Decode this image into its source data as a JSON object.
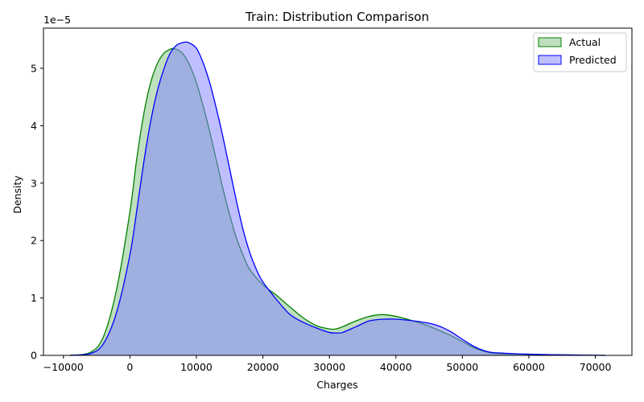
{
  "chart_data": {
    "type": "area",
    "title": "Train: Distribution Comparison",
    "xlabel": "Charges",
    "ylabel": "Density",
    "y_exponent_label": "1e−5",
    "xlim": [
      -13000,
      75500
    ],
    "ylim": [
      0,
      5.7
    ],
    "x_ticks": [
      -10000,
      0,
      10000,
      20000,
      30000,
      40000,
      50000,
      60000,
      70000
    ],
    "x_tick_labels": [
      "−10000",
      "0",
      "10000",
      "20000",
      "30000",
      "40000",
      "50000",
      "60000",
      "70000"
    ],
    "y_ticks": [
      0,
      1,
      2,
      3,
      4,
      5
    ],
    "y_tick_labels": [
      "0",
      "1",
      "2",
      "3",
      "4",
      "5"
    ],
    "legend_position": "top-right",
    "grid": false,
    "series": [
      {
        "name": "Actual",
        "line_color": "#008000",
        "fill_color": "#7fbf7f",
        "x": [
          -9000,
          -6000,
          -4000,
          -2000,
          0,
          1000,
          2000,
          3000,
          4000,
          5000,
          6000,
          6800,
          8000,
          9000,
          10000,
          11000,
          12000,
          13000,
          14000,
          15000,
          16000,
          17000,
          18000,
          20000,
          22000,
          24000,
          26000,
          28000,
          30000,
          31000,
          32000,
          34000,
          36000,
          38000,
          40000,
          42000,
          44000,
          46000,
          48000,
          50000,
          52000,
          54000,
          56000,
          60000,
          64000,
          68000,
          71500
        ],
        "y": [
          0.0,
          0.05,
          0.32,
          1.15,
          2.5,
          3.4,
          4.15,
          4.7,
          5.05,
          5.25,
          5.33,
          5.34,
          5.25,
          5.05,
          4.75,
          4.35,
          3.9,
          3.4,
          2.9,
          2.45,
          2.05,
          1.75,
          1.5,
          1.23,
          1.05,
          0.85,
          0.66,
          0.52,
          0.46,
          0.46,
          0.5,
          0.6,
          0.68,
          0.71,
          0.68,
          0.62,
          0.55,
          0.46,
          0.36,
          0.24,
          0.12,
          0.05,
          0.03,
          0.02,
          0.01,
          0.005,
          0.0
        ]
      },
      {
        "name": "Predicted",
        "line_color": "#0000ff",
        "fill_color": "#7f7fff",
        "x": [
          -9000,
          -6000,
          -4000,
          -2000,
          0,
          1000,
          2000,
          3000,
          4000,
          5000,
          6000,
          7000,
          8000,
          8800,
          10000,
          11000,
          12000,
          13000,
          14000,
          15000,
          16000,
          17000,
          18000,
          19000,
          20000,
          22000,
          24000,
          26000,
          28000,
          30000,
          31000,
          32000,
          34000,
          36000,
          38000,
          40000,
          42000,
          44000,
          46000,
          48000,
          50000,
          52000,
          54000,
          56000,
          60000,
          64000,
          68000,
          71500
        ],
        "y": [
          0.0,
          0.03,
          0.2,
          0.75,
          1.75,
          2.5,
          3.3,
          4.0,
          4.55,
          4.95,
          5.25,
          5.4,
          5.45,
          5.45,
          5.35,
          5.1,
          4.75,
          4.3,
          3.8,
          3.25,
          2.7,
          2.2,
          1.8,
          1.5,
          1.28,
          0.98,
          0.72,
          0.58,
          0.48,
          0.4,
          0.39,
          0.4,
          0.5,
          0.6,
          0.63,
          0.63,
          0.61,
          0.58,
          0.53,
          0.43,
          0.28,
          0.14,
          0.06,
          0.04,
          0.02,
          0.01,
          0.005,
          0.0
        ]
      }
    ]
  }
}
